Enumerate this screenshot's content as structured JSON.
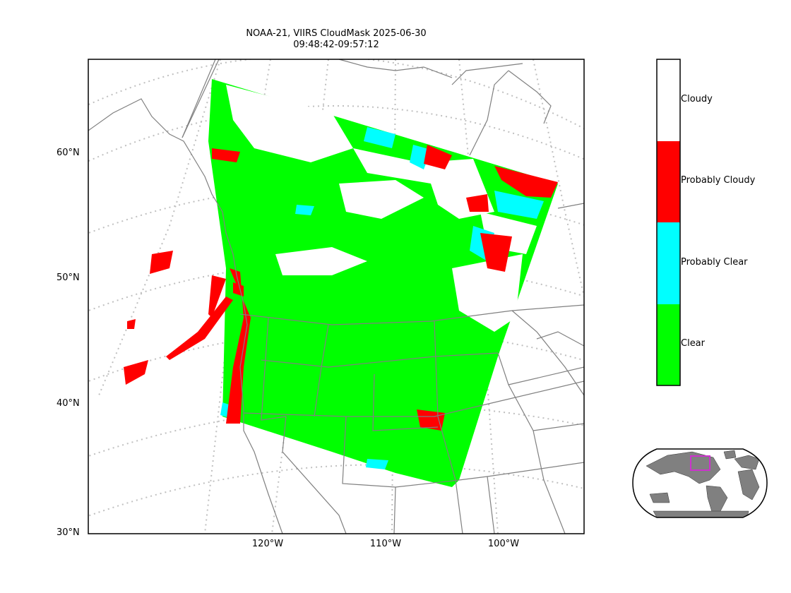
{
  "title": {
    "line1": "NOAA-21, VIIRS CloudMask 2025-06-30",
    "line2": "09:48:42-09:57:12"
  },
  "map": {
    "lat_labels": [
      "60°N",
      "50°N",
      "40°N",
      "30°N"
    ],
    "lon_labels": [
      "120°W",
      "110°W",
      "100°W"
    ],
    "land_color": "#ffffff",
    "boundary_color": "#808080",
    "grid_color": "#c0c0c0"
  },
  "colorbar": {
    "classes": [
      {
        "label": "Cloudy",
        "color": "#ffffff"
      },
      {
        "label": "Probably Cloudy",
        "color": "#ff0000"
      },
      {
        "label": "Probably Clear",
        "color": "#00ffff"
      },
      {
        "label": "Clear",
        "color": "#00ff00"
      }
    ]
  },
  "inset": {
    "land_color": "#808080",
    "box_color": "#cc33cc"
  }
}
